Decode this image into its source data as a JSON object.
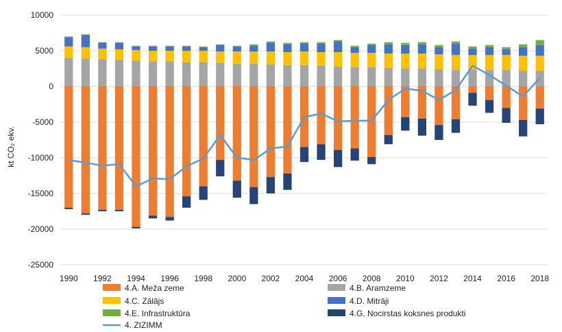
{
  "chart_data": {
    "type": "bar",
    "stacked": true,
    "ylabel": "kt CO₂ ekv.",
    "ylim": [
      -25000,
      10000
    ],
    "yticks": [
      10000,
      5000,
      0,
      -5000,
      -10000,
      -15000,
      -20000,
      -25000
    ],
    "ytick_labels": [
      "10000",
      "5000",
      "0",
      "-5000",
      "-10000",
      "-15000",
      "-20000",
      "-25000"
    ],
    "grid": true,
    "legend_position": "bottom",
    "categories": [
      "1990",
      "1991",
      "1992",
      "1993",
      "1994",
      "1995",
      "1996",
      "1997",
      "1998",
      "1999",
      "2000",
      "2001",
      "2002",
      "2003",
      "2004",
      "2005",
      "2006",
      "2007",
      "2008",
      "2009",
      "2010",
      "2011",
      "2012",
      "2013",
      "2014",
      "2015",
      "2016",
      "2017",
      "2018"
    ],
    "xtick_labels": [
      "1990",
      "",
      "1992",
      "",
      "1994",
      "",
      "1996",
      "",
      "1998",
      "",
      "2000",
      "",
      "2002",
      "",
      "2004",
      "",
      "2006",
      "",
      "2008",
      "",
      "2010",
      "",
      "2012",
      "",
      "2014",
      "",
      "2016",
      "",
      "2018"
    ],
    "series": [
      {
        "name": "4.A. Meža zeme",
        "color": "#ED7D31",
        "kind": "bar",
        "values": [
          -17000,
          -17800,
          -17300,
          -17300,
          -19700,
          -18100,
          -18300,
          -15400,
          -14000,
          -10300,
          -13200,
          -14100,
          -12700,
          -12200,
          -8500,
          -8100,
          -8900,
          -8700,
          -9900,
          -6800,
          -4300,
          -4500,
          -5400,
          -4600,
          -900,
          -1900,
          -3000,
          -4700,
          -3100
        ]
      },
      {
        "name": "4.B. Aramzeme",
        "color": "#A5A5A5",
        "kind": "bar",
        "values": [
          4000,
          3900,
          3800,
          3700,
          3600,
          3500,
          3500,
          3400,
          3400,
          3300,
          3200,
          3200,
          3100,
          3000,
          3000,
          2900,
          2800,
          2700,
          2700,
          2600,
          2500,
          2500,
          2400,
          2300,
          2300,
          2300,
          2300,
          2200,
          2200
        ]
      },
      {
        "name": "4.C. Zālājs",
        "color": "#FFC000",
        "kind": "bar",
        "values": [
          1600,
          1600,
          1500,
          1500,
          1500,
          1500,
          1500,
          1600,
          1600,
          1600,
          1700,
          1700,
          1800,
          1800,
          1900,
          1900,
          2000,
          2000,
          2000,
          2000,
          2100,
          2100,
          2100,
          2100,
          2100,
          2100,
          2100,
          2100,
          2100
        ]
      },
      {
        "name": "4.D. Mitrāji",
        "color": "#4472C4",
        "kind": "bar",
        "values": [
          1300,
          1700,
          800,
          900,
          500,
          600,
          600,
          600,
          500,
          900,
          700,
          800,
          1200,
          1100,
          1100,
          1200,
          1500,
          800,
          1100,
          1300,
          1200,
          1300,
          1000,
          1600,
          900,
          1100,
          800,
          1200,
          1500
        ]
      },
      {
        "name": "4.E. Infrastruktūra",
        "color": "#70AD47",
        "kind": "bar",
        "values": [
          100,
          100,
          100,
          100,
          100,
          100,
          100,
          100,
          100,
          100,
          100,
          200,
          200,
          200,
          200,
          200,
          200,
          200,
          200,
          300,
          300,
          300,
          300,
          300,
          300,
          300,
          300,
          400,
          700
        ]
      },
      {
        "name": "4.G. Nocirstas koksnes produkti",
        "color": "#264478",
        "kind": "bar",
        "values": [
          -200,
          -200,
          -200,
          -200,
          -200,
          -400,
          -500,
          -1600,
          -1900,
          -2300,
          -2400,
          -2400,
          -2300,
          -2300,
          -2100,
          -2200,
          -2400,
          -1700,
          -1000,
          -1300,
          -1900,
          -2400,
          -2100,
          -1900,
          -1800,
          -1800,
          -2100,
          -2300,
          -2200
        ]
      },
      {
        "name": "4. ZIZIMM",
        "color": "#5B9BD5",
        "kind": "line",
        "values": [
          -10300,
          -10700,
          -11100,
          -10900,
          -14000,
          -12900,
          -13000,
          -11200,
          -10100,
          -6800,
          -10000,
          -10300,
          -8700,
          -8400,
          -4300,
          -3800,
          -4900,
          -4800,
          -4800,
          -1900,
          -300,
          -600,
          -1900,
          -500,
          2900,
          1600,
          100,
          -1400,
          1200
        ]
      }
    ]
  }
}
